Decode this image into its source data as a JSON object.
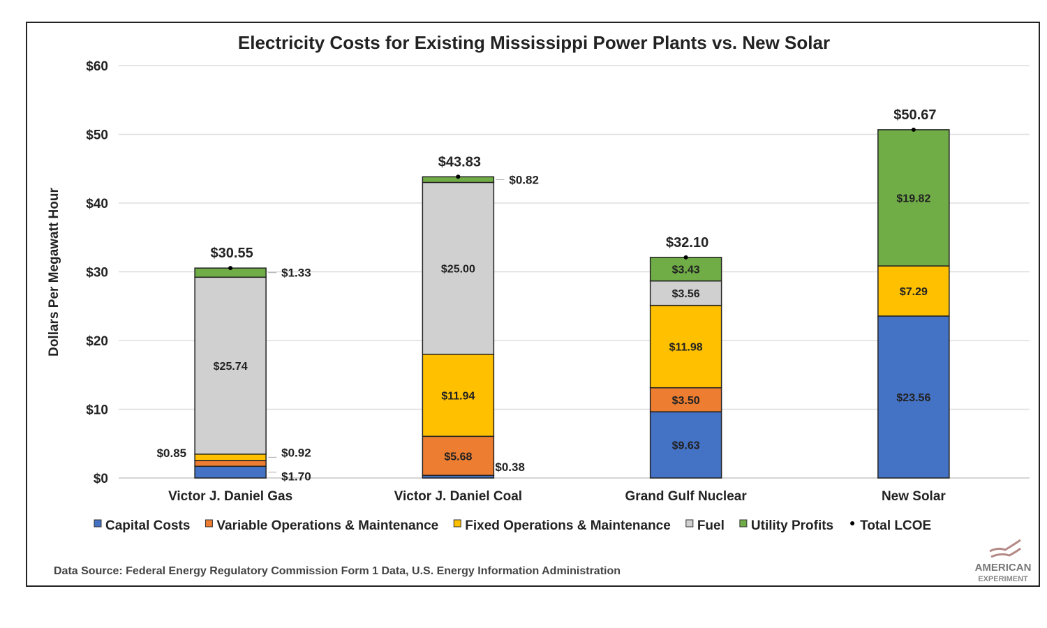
{
  "chart_data": {
    "type": "bar",
    "stacked": true,
    "title": "Electricity Costs for Existing Mississippi Power Plants vs. New Solar",
    "ylabel": "Dollars Per Megawatt Hour",
    "xlabel": "",
    "ylim": [
      0,
      60
    ],
    "yticks": [
      0,
      10,
      20,
      30,
      40,
      50,
      60
    ],
    "ytick_labels": [
      "$0",
      "$10",
      "$20",
      "$30",
      "$40",
      "$50",
      "$60"
    ],
    "grid": true,
    "legend_position": "bottom",
    "categories": [
      "Victor J. Daniel Gas",
      "Victor J. Daniel Coal",
      "Grand Gulf Nuclear",
      "New Solar"
    ],
    "series": [
      {
        "name": "Capital Costs",
        "color": "#4472C4",
        "values": [
          1.7,
          0.38,
          9.63,
          23.56
        ]
      },
      {
        "name": "Variable Operations & Maintenance",
        "color": "#ED7D31",
        "values": [
          0.85,
          5.68,
          3.5,
          null
        ]
      },
      {
        "name": "Fixed Operations & Maintenance",
        "color": "#FFC000",
        "values": [
          0.92,
          11.94,
          11.98,
          7.29
        ]
      },
      {
        "name": "Fuel",
        "color": "#D0D0D0",
        "values": [
          25.74,
          25.0,
          3.56,
          null
        ]
      },
      {
        "name": "Utility Profits",
        "color": "#70AD47",
        "values": [
          1.33,
          0.82,
          3.43,
          19.82
        ]
      }
    ],
    "total_series": {
      "name": "Total LCOE",
      "values": [
        30.55,
        43.83,
        32.1,
        50.67
      ]
    },
    "source": "Data Source: Federal Energy Regulatory Commission Form 1 Data, U.S. Energy Information Administration"
  },
  "logo": {
    "line1": "AMERICAN",
    "line2": "EXPERIMENT"
  }
}
